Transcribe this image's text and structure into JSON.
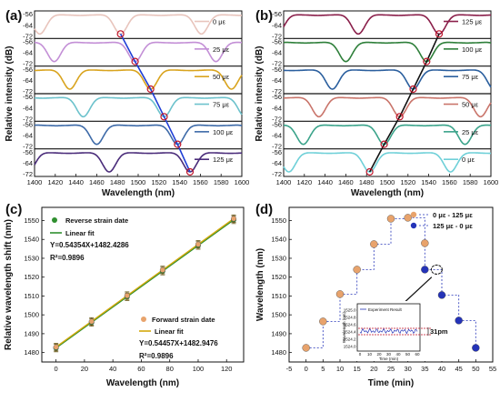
{
  "chart_data": [
    {
      "panel": "a",
      "type": "line",
      "xlabel": "Wavelength (nm)",
      "ylabel": "Relative intensity (dB)",
      "xlim": [
        1400,
        1600
      ],
      "xticks": [
        1400,
        1420,
        1440,
        1460,
        1480,
        1500,
        1520,
        1540,
        1560,
        1580,
        1600
      ],
      "yticks": [
        "-56",
        "-64",
        "-72"
      ],
      "spectra": [
        {
          "label": "0 με",
          "color": "#e8c4bc",
          "dip": 1483,
          "period": 78
        },
        {
          "label": "25 με",
          "color": "#c38fd6",
          "dip": 1497,
          "period": 78
        },
        {
          "label": "50 με",
          "color": "#d9a41f",
          "dip": 1512,
          "period": 78
        },
        {
          "label": "75 με",
          "color": "#6cc2cc",
          "dip": 1525,
          "period": 78
        },
        {
          "label": "100 με",
          "color": "#3d6aa8",
          "dip": 1538,
          "period": 78
        },
        {
          "label": "125 με",
          "color": "#4a2c7a",
          "dip": 1550,
          "period": 78
        }
      ],
      "trace_color": "#1f3fd6"
    },
    {
      "panel": "b",
      "type": "line",
      "xlabel": "Wavelength (nm)",
      "ylabel": "Relative intensity (dB)",
      "xlim": [
        1400,
        1600
      ],
      "xticks": [
        1400,
        1420,
        1440,
        1460,
        1480,
        1500,
        1520,
        1540,
        1560,
        1580,
        1600
      ],
      "yticks": [
        "-56",
        "-64",
        "-72"
      ],
      "spectra": [
        {
          "label": "125 με",
          "color": "#8a1f4a",
          "dip": 1550,
          "period": 78
        },
        {
          "label": "100 με",
          "color": "#2e7f3a",
          "dip": 1538,
          "period": 78
        },
        {
          "label": "75 με",
          "color": "#2b5f9e",
          "dip": 1525,
          "period": 78
        },
        {
          "label": "50 με",
          "color": "#c9746a",
          "dip": 1512,
          "period": 78
        },
        {
          "label": "25 με",
          "color": "#3aa38a",
          "dip": 1497,
          "period": 78
        },
        {
          "label": "0 με",
          "color": "#6fd0d8",
          "dip": 1483,
          "period": 78
        }
      ],
      "trace_color": "#111111"
    },
    {
      "panel": "c",
      "type": "scatter",
      "xlabel": "Wavelength (nm)",
      "ylabel": "Relative wavelength shift (nm)",
      "xlim": [
        -10,
        132
      ],
      "ylim": [
        1475,
        1557
      ],
      "xticks": [
        0,
        20,
        40,
        60,
        80,
        100,
        120
      ],
      "yticks": [
        1480,
        1490,
        1500,
        1510,
        1520,
        1530,
        1540,
        1550
      ],
      "series": [
        {
          "name": "Reverse strain date",
          "color": "#2f8f2f",
          "x": [
            0,
            25,
            50,
            75,
            100,
            125
          ],
          "y": [
            1482.4,
            1496.0,
            1509.6,
            1523.2,
            1536.8,
            1550.4
          ]
        },
        {
          "name": "Forward strain date",
          "color": "#e8a36c",
          "x": [
            0,
            25,
            50,
            75,
            100,
            125
          ],
          "y": [
            1482.9,
            1496.5,
            1510.2,
            1523.8,
            1537.4,
            1551.0
          ]
        }
      ],
      "error": 2.0,
      "fits": [
        {
          "name": "Linear fit",
          "color": "#2f8f2f",
          "slope": 0.54354,
          "intercept": 1482.4286,
          "equation": "Y=0.54354X+1482.4286",
          "r2": "R²=0.9896"
        },
        {
          "name": "Linear fit",
          "color": "#d4a80c",
          "slope": 0.54457,
          "intercept": 1482.9476,
          "equation": "Y=0.54457X+1482.9476",
          "r2": "R²=0.9896"
        }
      ]
    },
    {
      "panel": "d",
      "type": "scatter",
      "xlabel": "Time (min)",
      "ylabel": "Wavelength (nm)",
      "xlim": [
        -5,
        55
      ],
      "ylim": [
        1475,
        1557
      ],
      "xticks": [
        -5,
        0,
        5,
        10,
        15,
        20,
        25,
        30,
        35,
        40,
        45,
        50,
        55
      ],
      "yticks": [
        1480,
        1490,
        1500,
        1510,
        1520,
        1530,
        1540,
        1550
      ],
      "series": [
        {
          "name": "0 με - 125 με",
          "color": "#e8a36c",
          "x": [
            0,
            5,
            10,
            15,
            20,
            25,
            30,
            35
          ],
          "y": [
            1482.5,
            1496.5,
            1511,
            1524,
            1537.5,
            1551,
            1551.5,
            1538
          ]
        },
        {
          "name": "125 με - 0 με",
          "color": "#2433b8",
          "x": [
            35,
            40,
            45,
            50
          ],
          "y": [
            1524,
            1510.5,
            1497,
            1482.5
          ]
        }
      ],
      "inset": {
        "legend": "Experiment Result",
        "xlabel": "Time (min)",
        "ylabel": "Wavelength (nm)",
        "xticks": [
          0,
          10,
          20,
          30,
          40,
          50,
          60
        ],
        "yticks": [
          "1525.0",
          "1524.8",
          "1524.6",
          "1524.4",
          "1524.2",
          "1524.0"
        ],
        "annotation": "31pm"
      }
    }
  ],
  "labels": {
    "a": "(a)",
    "b": "(b)",
    "c": "(c)",
    "d": "(d)"
  }
}
